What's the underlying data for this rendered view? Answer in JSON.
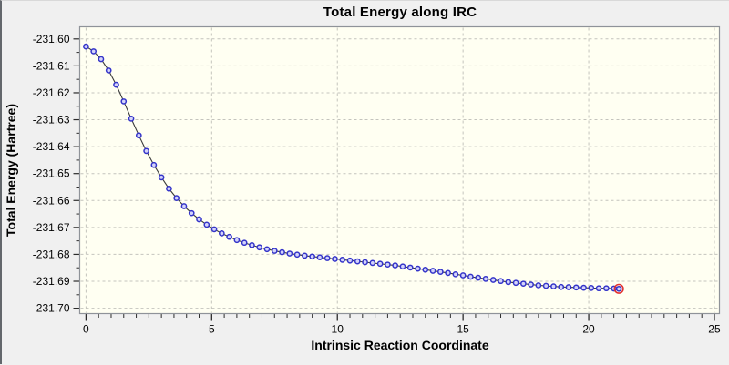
{
  "window": {
    "bg_color": "#f0f0f0",
    "frame_color": "#63676c"
  },
  "chart_data": {
    "type": "line",
    "title": "Total Energy along IRC",
    "xlabel": "Intrinsic Reaction Coordinate",
    "ylabel": "Total Energy (Hartree)",
    "xlim": [
      -0.25,
      25.2
    ],
    "ylim": [
      -231.702,
      -231.5955
    ],
    "grid": "dashed",
    "legend": "none",
    "x_tick_labels": [
      "0",
      "5",
      "10",
      "15",
      "20",
      "25"
    ],
    "x_tick_values": [
      0,
      5,
      10,
      15,
      20,
      25
    ],
    "x_minor_tick_step": 0.5,
    "y_tick_labels": [
      "-231.60",
      "-231.61",
      "-231.62",
      "-231.63",
      "-231.64",
      "-231.65",
      "-231.66",
      "-231.67",
      "-231.68",
      "-231.69",
      "-231.70"
    ],
    "y_tick_values": [
      -231.6,
      -231.61,
      -231.62,
      -231.63,
      -231.64,
      -231.65,
      -231.66,
      -231.67,
      -231.68,
      -231.69,
      -231.7
    ],
    "y_minor_tick_step": 0.005,
    "colors": {
      "canvas_bg": "#fffff2",
      "grid": "#c4c4bd",
      "canvas_border": "#8f9399",
      "line": "#3a3a3a",
      "marker_stroke": "#3434c9",
      "marker_fill": "#d4d4fa",
      "highlight_ring": "#e23030",
      "tick": "#2b2b2b",
      "text": "#000000"
    },
    "highlight_index": 71,
    "series": [
      {
        "name": "Total Energy",
        "points": [
          [
            0.0,
            -231.6028
          ],
          [
            0.3,
            -231.6046
          ],
          [
            0.6,
            -231.6075
          ],
          [
            0.9,
            -231.6117
          ],
          [
            1.2,
            -231.617
          ],
          [
            1.5,
            -231.6232
          ],
          [
            1.8,
            -231.6296
          ],
          [
            2.1,
            -231.6358
          ],
          [
            2.4,
            -231.6416
          ],
          [
            2.7,
            -231.6468
          ],
          [
            3.0,
            -231.6514
          ],
          [
            3.3,
            -231.6556
          ],
          [
            3.6,
            -231.6591
          ],
          [
            3.9,
            -231.6621
          ],
          [
            4.2,
            -231.6647
          ],
          [
            4.5,
            -231.667
          ],
          [
            4.8,
            -231.669
          ],
          [
            5.1,
            -231.6707
          ],
          [
            5.4,
            -231.6722
          ],
          [
            5.7,
            -231.6735
          ],
          [
            6.0,
            -231.6747
          ],
          [
            6.3,
            -231.6757
          ],
          [
            6.6,
            -231.6766
          ],
          [
            6.9,
            -231.6774
          ],
          [
            7.2,
            -231.6781
          ],
          [
            7.5,
            -231.6787
          ],
          [
            7.8,
            -231.6792
          ],
          [
            8.1,
            -231.6797
          ],
          [
            8.4,
            -231.6801
          ],
          [
            8.7,
            -231.6805
          ],
          [
            9.0,
            -231.6808
          ],
          [
            9.3,
            -231.6811
          ],
          [
            9.6,
            -231.6814
          ],
          [
            9.9,
            -231.6817
          ],
          [
            10.2,
            -231.682
          ],
          [
            10.5,
            -231.6823
          ],
          [
            10.8,
            -231.6826
          ],
          [
            11.1,
            -231.6829
          ],
          [
            11.4,
            -231.6832
          ],
          [
            11.7,
            -231.6835
          ],
          [
            12.0,
            -231.6838
          ],
          [
            12.3,
            -231.6841
          ],
          [
            12.6,
            -231.6845
          ],
          [
            12.9,
            -231.6849
          ],
          [
            13.2,
            -231.6853
          ],
          [
            13.5,
            -231.6857
          ],
          [
            13.8,
            -231.6861
          ],
          [
            14.1,
            -231.6865
          ],
          [
            14.4,
            -231.6869
          ],
          [
            14.7,
            -231.6874
          ],
          [
            15.0,
            -231.6878
          ],
          [
            15.3,
            -231.6883
          ],
          [
            15.6,
            -231.6887
          ],
          [
            15.9,
            -231.6891
          ],
          [
            16.2,
            -231.6895
          ],
          [
            16.5,
            -231.6899
          ],
          [
            16.8,
            -231.6903
          ],
          [
            17.1,
            -231.6906
          ],
          [
            17.4,
            -231.6909
          ],
          [
            17.7,
            -231.6912
          ],
          [
            18.0,
            -231.6915
          ],
          [
            18.3,
            -231.6917
          ],
          [
            18.6,
            -231.6919
          ],
          [
            18.9,
            -231.6921
          ],
          [
            19.2,
            -231.6922
          ],
          [
            19.5,
            -231.6923
          ],
          [
            19.8,
            -231.6924
          ],
          [
            20.1,
            -231.6925
          ],
          [
            20.4,
            -231.6926
          ],
          [
            20.7,
            -231.6926
          ],
          [
            21.0,
            -231.6927
          ],
          [
            21.2,
            -231.6928
          ]
        ]
      }
    ]
  }
}
